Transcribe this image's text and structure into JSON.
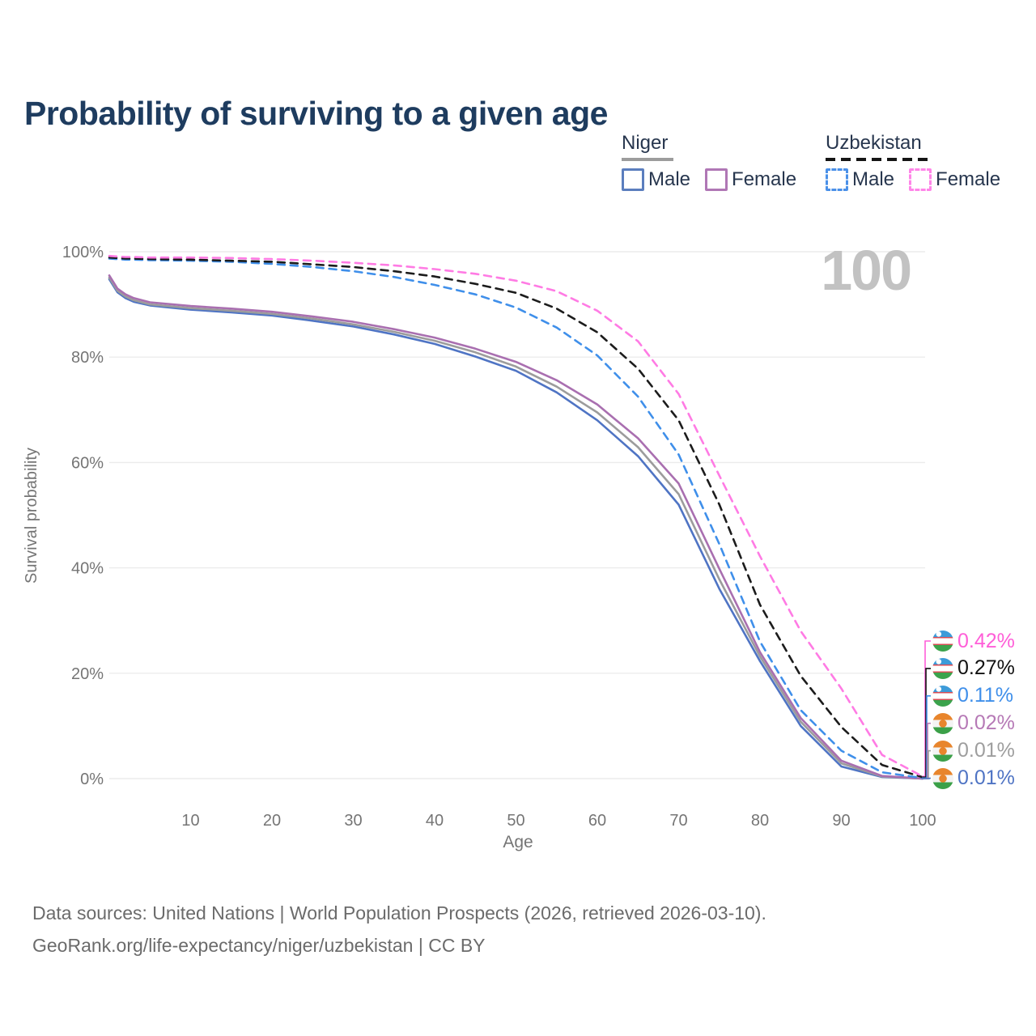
{
  "title": "Probability of surviving to a given age",
  "watermark_age": "100",
  "legend": {
    "groups": [
      {
        "country": "Niger",
        "line_style": "solid",
        "line_color": "#9C9C9C",
        "items": [
          {
            "label": "Male",
            "color": "#5B7EBE",
            "style": "solid"
          },
          {
            "label": "Female",
            "color": "#B077B5",
            "style": "solid"
          }
        ]
      },
      {
        "country": "Uzbekistan",
        "line_style": "dashed",
        "line_color": "#151515",
        "items": [
          {
            "label": "Male",
            "color": "#4A90E8",
            "style": "dashed"
          },
          {
            "label": "Female",
            "color": "#FF85E8",
            "style": "dashed"
          }
        ]
      }
    ]
  },
  "chart_data": {
    "type": "line",
    "title": "Probability of surviving to a given age",
    "xlabel": "Age",
    "ylabel": "Survival probability",
    "xlim": [
      0,
      100
    ],
    "ylim": [
      0,
      100
    ],
    "grid": "horizontal",
    "legend_position": "top-right",
    "x_ticks": [
      10,
      20,
      30,
      40,
      50,
      60,
      70,
      80,
      90,
      100
    ],
    "y_ticks": [
      0,
      20,
      40,
      60,
      80,
      100
    ],
    "y_tick_suffix": "%",
    "hover_age": "100",
    "x": [
      0,
      1,
      2,
      3,
      5,
      10,
      15,
      20,
      25,
      30,
      35,
      40,
      45,
      50,
      55,
      60,
      65,
      70,
      75,
      80,
      85,
      90,
      95,
      100
    ],
    "series": [
      {
        "name": "Niger Male",
        "country": "Niger",
        "sex": "Male",
        "color": "#4F74C4",
        "dash": "solid",
        "values": [
          94.8,
          92.3,
          91.2,
          90.5,
          89.8,
          89.0,
          88.5,
          87.9,
          86.9,
          85.8,
          84.3,
          82.5,
          80.1,
          77.4,
          73.3,
          68.0,
          61.2,
          52.0,
          36.0,
          22.3,
          10.0,
          2.3,
          0.3,
          0.01
        ]
      },
      {
        "name": "Niger Both sexes",
        "country": "Niger",
        "sex": "Both",
        "color": "#9C9C9C",
        "dash": "solid",
        "values": [
          95.1,
          92.6,
          91.5,
          90.8,
          90.0,
          89.3,
          88.8,
          88.2,
          87.3,
          86.2,
          84.8,
          83.1,
          80.9,
          78.2,
          74.4,
          69.5,
          62.9,
          54.0,
          37.8,
          23.2,
          10.8,
          2.9,
          0.4,
          0.01
        ]
      },
      {
        "name": "Niger Female",
        "country": "Niger",
        "sex": "Female",
        "color": "#A96FB0",
        "dash": "solid",
        "values": [
          95.5,
          93.0,
          91.9,
          91.2,
          90.4,
          89.7,
          89.2,
          88.6,
          87.7,
          86.7,
          85.3,
          83.7,
          81.6,
          79.1,
          75.6,
          71.0,
          64.6,
          56.0,
          39.8,
          24.0,
          11.5,
          3.4,
          0.5,
          0.02
        ]
      },
      {
        "name": "Uzbekistan Male",
        "country": "Uzbekistan",
        "sex": "Male",
        "color": "#3F8FEA",
        "dash": "dashed",
        "values": [
          98.7,
          98.6,
          98.5,
          98.5,
          98.4,
          98.3,
          98.1,
          97.7,
          97.1,
          96.3,
          95.2,
          93.7,
          91.9,
          89.4,
          85.6,
          80.3,
          72.5,
          61.5,
          44.5,
          26.0,
          13.0,
          5.3,
          1.2,
          0.11
        ]
      },
      {
        "name": "Uzbekistan Both sexes",
        "country": "Uzbekistan",
        "sex": "Both",
        "color": "#1C1C1C",
        "dash": "dashed",
        "values": [
          98.9,
          98.8,
          98.7,
          98.7,
          98.6,
          98.5,
          98.3,
          98.1,
          97.6,
          97.1,
          96.3,
          95.3,
          93.9,
          92.2,
          89.2,
          84.7,
          77.8,
          68.0,
          52.0,
          33.0,
          19.5,
          9.8,
          2.6,
          0.27
        ]
      },
      {
        "name": "Uzbekistan Female",
        "country": "Uzbekistan",
        "sex": "Female",
        "color": "#FF7BE4",
        "dash": "dashed",
        "values": [
          99.2,
          99.1,
          99.0,
          99.0,
          98.9,
          98.9,
          98.8,
          98.6,
          98.3,
          97.9,
          97.4,
          96.7,
          95.8,
          94.5,
          92.5,
          88.8,
          83.0,
          73.0,
          57.5,
          42.2,
          28.0,
          17.1,
          4.5,
          0.42
        ]
      }
    ],
    "end_labels": [
      {
        "text": "0.42%",
        "color": "#FF5ED8",
        "flag": "uzbekistan",
        "series": "Uzbekistan Female"
      },
      {
        "text": "0.27%",
        "color": "#111111",
        "flag": "uzbekistan",
        "series": "Uzbekistan Both sexes"
      },
      {
        "text": "0.11%",
        "color": "#3F8FEA",
        "flag": "uzbekistan",
        "series": "Uzbekistan Male"
      },
      {
        "text": "0.02%",
        "color": "#B679B6",
        "flag": "niger",
        "series": "Niger Female"
      },
      {
        "text": "0.01%",
        "color": "#9E9E9E",
        "flag": "niger",
        "series": "Niger Both sexes"
      },
      {
        "text": "0.01%",
        "color": "#4F74C4",
        "flag": "niger",
        "series": "Niger Male"
      }
    ]
  },
  "footer": {
    "line1": "Data sources: United Nations | World Population Prospects (2026, retrieved 2026-03-10).",
    "line2": "GeoRank.org/life-expectancy/niger/uzbekistan | CC BY"
  }
}
